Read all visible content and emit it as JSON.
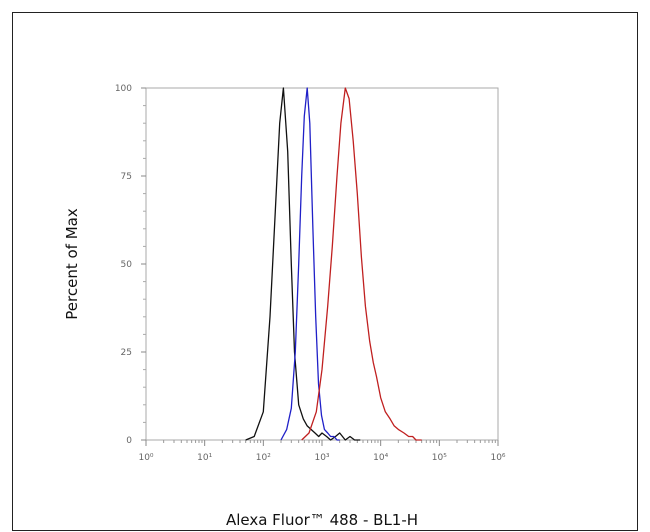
{
  "chart_data": {
    "type": "line",
    "title": "",
    "xlabel": "Alexa Fluor™ 488 - BL1-H",
    "ylabel": "Percent of Max",
    "x_scale": "log",
    "xlim": [
      1,
      1000000
    ],
    "ylim": [
      0,
      100
    ],
    "x_ticks": [
      {
        "value": 1,
        "label": "10⁰"
      },
      {
        "value": 10,
        "label": "10¹"
      },
      {
        "value": 100,
        "label": "10²"
      },
      {
        "value": 1000,
        "label": "10³"
      },
      {
        "value": 10000,
        "label": "10⁴"
      },
      {
        "value": 100000,
        "label": "10⁵"
      },
      {
        "value": 1000000,
        "label": "10⁶"
      }
    ],
    "y_ticks": [
      0,
      25,
      50,
      75,
      100
    ],
    "grid": false,
    "legend": "none",
    "series": [
      {
        "color": "#111111",
        "x": [
          50,
          70,
          100,
          130,
          160,
          190,
          220,
          260,
          300,
          340,
          400,
          480,
          560,
          650,
          760,
          880,
          1000,
          1200,
          1400,
          1700,
          2000,
          2500,
          3000,
          3600,
          4500
        ],
        "y": [
          0,
          1,
          8,
          35,
          65,
          90,
          100,
          82,
          50,
          25,
          10,
          6,
          4,
          3,
          2,
          1,
          2,
          1,
          0,
          1,
          2,
          0,
          1,
          0,
          0
        ]
      },
      {
        "color": "#2020c8",
        "x": [
          200,
          250,
          300,
          350,
          400,
          450,
          500,
          560,
          620,
          700,
          780,
          870,
          980,
          1100,
          1250,
          1400,
          1600,
          1800,
          2000
        ],
        "y": [
          0,
          3,
          9,
          25,
          50,
          75,
          92,
          100,
          90,
          60,
          35,
          16,
          7,
          3,
          2,
          1,
          1,
          0,
          0
        ]
      },
      {
        "color": "#c02020",
        "x": [
          450,
          600,
          800,
          1000,
          1250,
          1500,
          1800,
          2100,
          2500,
          2900,
          3400,
          4000,
          4700,
          5500,
          6500,
          7500,
          8500,
          10000,
          12000,
          14500,
          17000,
          20000,
          25000,
          30000,
          35000,
          40000,
          50000
        ],
        "y": [
          0,
          2,
          8,
          20,
          38,
          55,
          75,
          90,
          100,
          97,
          85,
          70,
          52,
          38,
          28,
          22,
          18,
          12,
          8,
          6,
          4,
          3,
          2,
          1,
          1,
          0,
          0
        ]
      }
    ]
  }
}
